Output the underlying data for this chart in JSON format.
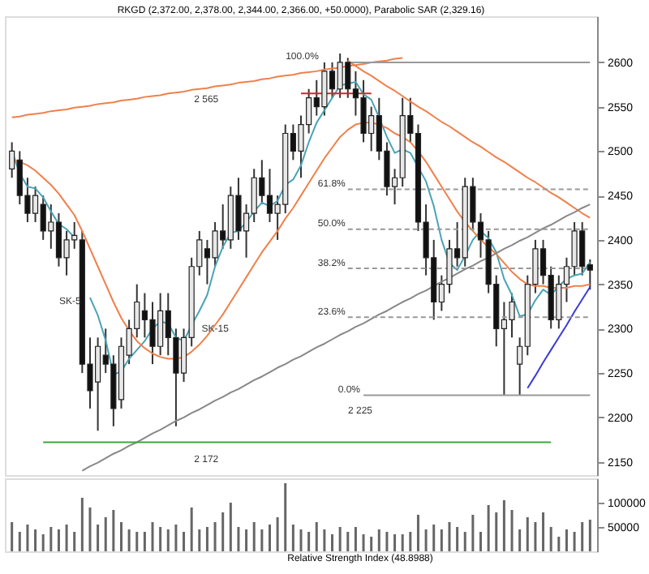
{
  "chart_data": [
    {
      "type": "candlestick",
      "title": "RKGD (2,372.00, 2,378.00, 2,344.00, 2,366.00, +50.0000), Parabolic SAR (2,329.16)",
      "categories": [
        null,
        null,
        null,
        null,
        null,
        null,
        null,
        null,
        null,
        null,
        null,
        null,
        null,
        null,
        null,
        null,
        null,
        null,
        null,
        null,
        null,
        null,
        null,
        null,
        null,
        null,
        null,
        null,
        null,
        null,
        null,
        null,
        null,
        null,
        null,
        null,
        null,
        null,
        null,
        null,
        null,
        null,
        null,
        null,
        null,
        null,
        null,
        null,
        null,
        null,
        null,
        null,
        null,
        null,
        null,
        null,
        null,
        null,
        null,
        null,
        null,
        null,
        null,
        null,
        null,
        null,
        null,
        null,
        null,
        null,
        null,
        null,
        null,
        null,
        null
      ],
      "ohlc": [
        [
          2480,
          2510,
          2470,
          2500
        ],
        [
          2490,
          2500,
          2440,
          2450
        ],
        [
          2450,
          2470,
          2420,
          2430
        ],
        [
          2430,
          2460,
          2420,
          2450
        ],
        [
          2440,
          2450,
          2400,
          2410
        ],
        [
          2410,
          2440,
          2390,
          2420
        ],
        [
          2420,
          2430,
          2370,
          2380
        ],
        [
          2380,
          2410,
          2360,
          2400
        ],
        [
          2400,
          2420,
          2390,
          2405
        ],
        [
          2400,
          2410,
          2250,
          2260
        ],
        [
          2260,
          2290,
          2210,
          2230
        ],
        [
          2240,
          2290,
          2185,
          2280
        ],
        [
          2270,
          2300,
          2250,
          2260
        ],
        [
          2260,
          2270,
          2190,
          2210
        ],
        [
          2220,
          2290,
          2210,
          2280
        ],
        [
          2270,
          2310,
          2260,
          2300
        ],
        [
          2300,
          2350,
          2290,
          2330
        ],
        [
          2320,
          2340,
          2290,
          2310
        ],
        [
          2310,
          2330,
          2260,
          2280
        ],
        [
          2280,
          2340,
          2270,
          2320
        ],
        [
          2320,
          2340,
          2270,
          2290
        ],
        [
          2290,
          2300,
          2190,
          2250
        ],
        [
          2250,
          2300,
          2240,
          2290
        ],
        [
          2290,
          2380,
          2280,
          2370
        ],
        [
          2370,
          2410,
          2360,
          2400
        ],
        [
          2390,
          2400,
          2350,
          2380
        ],
        [
          2380,
          2420,
          2370,
          2410
        ],
        [
          2410,
          2440,
          2390,
          2400
        ],
        [
          2400,
          2460,
          2390,
          2450
        ],
        [
          2450,
          2470,
          2400,
          2410
        ],
        [
          2410,
          2440,
          2380,
          2430
        ],
        [
          2430,
          2480,
          2420,
          2470
        ],
        [
          2470,
          2490,
          2440,
          2450
        ],
        [
          2450,
          2480,
          2420,
          2430
        ],
        [
          2430,
          2450,
          2400,
          2440
        ],
        [
          2440,
          2530,
          2430,
          2520
        ],
        [
          2520,
          2530,
          2490,
          2500
        ],
        [
          2500,
          2540,
          2470,
          2530
        ],
        [
          2530,
          2570,
          2520,
          2560
        ],
        [
          2560,
          2580,
          2540,
          2550
        ],
        [
          2550,
          2600,
          2540,
          2590
        ],
        [
          2590,
          2600,
          2560,
          2570
        ],
        [
          2570,
          2610,
          2560,
          2600
        ],
        [
          2600,
          2605,
          2560,
          2570
        ],
        [
          2570,
          2590,
          2540,
          2560
        ],
        [
          2560,
          2580,
          2510,
          2520
        ],
        [
          2520,
          2550,
          2500,
          2540
        ],
        [
          2540,
          2560,
          2490,
          2500
        ],
        [
          2500,
          2510,
          2450,
          2460
        ],
        [
          2460,
          2480,
          2440,
          2470
        ],
        [
          2470,
          2560,
          2460,
          2540
        ],
        [
          2540,
          2560,
          2510,
          2520
        ],
        [
          2520,
          2530,
          2410,
          2420
        ],
        [
          2420,
          2440,
          2360,
          2380
        ],
        [
          2380,
          2400,
          2310,
          2330
        ],
        [
          2330,
          2360,
          2320,
          2350
        ],
        [
          2350,
          2400,
          2340,
          2390
        ],
        [
          2390,
          2420,
          2370,
          2380
        ],
        [
          2380,
          2470,
          2370,
          2460
        ],
        [
          2460,
          2470,
          2410,
          2420
        ],
        [
          2420,
          2430,
          2380,
          2400
        ],
        [
          2400,
          2410,
          2340,
          2350
        ],
        [
          2350,
          2360,
          2280,
          2300
        ],
        [
          2300,
          2330,
          2225,
          2310
        ],
        [
          2310,
          2340,
          2290,
          2330
        ],
        [
          2260,
          2290,
          2225,
          2280
        ],
        [
          2280,
          2360,
          2270,
          2350
        ],
        [
          2350,
          2400,
          2340,
          2390
        ],
        [
          2390,
          2400,
          2350,
          2360
        ],
        [
          2360,
          2370,
          2300,
          2310
        ],
        [
          2310,
          2360,
          2300,
          2350
        ],
        [
          2350,
          2380,
          2330,
          2370
        ],
        [
          2370,
          2420,
          2360,
          2410
        ],
        [
          2410,
          2420,
          2360,
          2370
        ],
        [
          2372,
          2378,
          2344,
          2366
        ]
      ],
      "series": [
        {
          "type": "line",
          "color": "#4aa3b5",
          "values": [
            2500,
            2475,
            2460,
            2458,
            2448,
            2432,
            2418,
            2412,
            2403,
            null,
            2335,
            2315,
            2287,
            2248,
            2252,
            2266,
            2276,
            2286,
            2300,
            2308,
            2306,
            2290,
            2286,
            2304,
            2320,
            2338,
            2370,
            2392,
            2408,
            2410,
            2420,
            2432,
            2442,
            2438,
            2444,
            2462,
            2468,
            2484,
            2510,
            2532,
            2546,
            2560,
            2574,
            2576,
            2578,
            2564,
            2558,
            2538,
            2516,
            2498,
            2502,
            2498,
            2482,
            2466,
            2438,
            2400,
            2374,
            2366,
            2382,
            2400,
            2410,
            2402,
            2386,
            2356,
            2338,
            2314,
            2316,
            2332,
            2344,
            2338,
            2348,
            2356,
            2360,
            2362,
            2375
          ]
        },
        {
          "type": "line",
          "color": "#f0804a",
          "values": [
            2490,
            2488,
            2484,
            2478,
            2470,
            2462,
            2452,
            2440,
            2428,
            2410,
            2390,
            2370,
            2350,
            2330,
            2312,
            2298,
            2286,
            2278,
            2272,
            2268,
            2266,
            2266,
            2268,
            2274,
            2282,
            2292,
            2304,
            2316,
            2330,
            2344,
            2358,
            2372,
            2386,
            2398,
            2410,
            2424,
            2436,
            2450,
            2464,
            2478,
            2492,
            2504,
            2516,
            2524,
            2530,
            2532,
            2532,
            2530,
            2526,
            2520,
            2516,
            2510,
            2500,
            2488,
            2474,
            2460,
            2446,
            2432,
            2420,
            2410,
            2400,
            2392,
            2384,
            2374,
            2364,
            2356,
            2350,
            2348,
            2348,
            2346,
            2346,
            2346,
            2348,
            2348,
            2350
          ]
        },
        {
          "type": "line",
          "color": "#f0804a",
          "values": [
            2538,
            2539,
            2541,
            2542,
            2543,
            2545,
            2546,
            2547,
            2549,
            2550,
            2551,
            2553,
            2554,
            2555,
            2557,
            2558,
            2559,
            2561,
            2562,
            2563,
            2565,
            2566,
            2567,
            2569,
            2570,
            2571,
            2573,
            2574,
            2575,
            2577,
            2578,
            2579,
            2581,
            2582,
            2584,
            2585,
            2586,
            2588,
            2589,
            2590,
            2592,
            2593,
            2594,
            2596,
            2597,
            2598,
            2600,
            2601,
            2602,
            2604,
            2605,
            null,
            null,
            null,
            null,
            null,
            null,
            null,
            null,
            null,
            null,
            null,
            null,
            null,
            null,
            null,
            null,
            null,
            null,
            null,
            null,
            null,
            null,
            null,
            null
          ]
        },
        {
          "type": "line",
          "color": "#f0804a",
          "values": [
            null,
            null,
            null,
            null,
            null,
            null,
            null,
            null,
            null,
            null,
            null,
            null,
            null,
            null,
            null,
            null,
            null,
            null,
            null,
            null,
            null,
            null,
            null,
            null,
            null,
            null,
            null,
            null,
            null,
            null,
            null,
            null,
            null,
            null,
            null,
            null,
            null,
            null,
            null,
            null,
            null,
            null,
            null,
            2602,
            2596,
            2590,
            2585,
            2579,
            2573,
            2568,
            2562,
            2556,
            2550,
            2545,
            2539,
            2533,
            2528,
            2522,
            2516,
            2510,
            2505,
            2499,
            2493,
            2488,
            2482,
            2476,
            2470,
            2465,
            2459,
            2453,
            2448,
            2442,
            2436,
            2430,
            2425
          ]
        },
        {
          "type": "line",
          "color": "#888888",
          "values": [
            null,
            null,
            null,
            null,
            null,
            null,
            null,
            null,
            null,
            2140,
            2145,
            2149,
            2154,
            2159,
            2163,
            2168,
            2172,
            2177,
            2182,
            2186,
            2191,
            2196,
            2200,
            2205,
            2209,
            2214,
            2219,
            2223,
            2228,
            2232,
            2237,
            2242,
            2246,
            2251,
            2256,
            2260,
            2265,
            2269,
            2274,
            2279,
            2283,
            2288,
            2293,
            2297,
            2302,
            2306,
            2311,
            2316,
            2320,
            2325,
            2330,
            2334,
            2339,
            2343,
            2348,
            2353,
            2357,
            2362,
            2367,
            2371,
            2376,
            2380,
            2385,
            2390,
            2394,
            2399,
            2403,
            2408,
            2413,
            2417,
            2422,
            2427,
            2431,
            2436,
            2440
          ]
        },
        {
          "type": "line",
          "color": "#3b3bd6",
          "values": [
            null,
            null,
            null,
            null,
            null,
            null,
            null,
            null,
            null,
            null,
            null,
            null,
            null,
            null,
            null,
            null,
            null,
            null,
            null,
            null,
            null,
            null,
            null,
            null,
            null,
            null,
            null,
            null,
            null,
            null,
            null,
            null,
            null,
            null,
            null,
            null,
            null,
            null,
            null,
            null,
            null,
            null,
            null,
            null,
            null,
            null,
            null,
            null,
            null,
            null,
            null,
            null,
            null,
            null,
            null,
            null,
            null,
            null,
            null,
            null,
            null,
            null,
            null,
            null,
            null,
            null,
            2233,
            2247,
            2262,
            2276,
            2290,
            2304,
            2319,
            2333,
            2347
          ]
        },
        {
          "type": "line",
          "color": "#e0202a",
          "values": [
            null,
            null,
            null,
            null,
            null,
            null,
            null,
            null,
            null,
            null,
            null,
            null,
            null,
            null,
            null,
            null,
            null,
            null,
            null,
            null,
            null,
            null,
            null,
            null,
            null,
            null,
            null,
            null,
            null,
            null,
            null,
            null,
            null,
            null,
            null,
            null,
            null,
            2565,
            2565,
            2565,
            2565,
            2565,
            2565,
            2565,
            2565,
            2565,
            2565,
            null,
            null,
            null,
            null,
            null,
            null,
            null,
            null,
            null,
            null,
            null,
            null,
            null,
            null,
            null,
            null,
            null,
            null,
            null,
            null,
            null,
            null,
            null,
            null,
            null,
            null,
            null,
            null
          ]
        },
        {
          "type": "line",
          "color": "#3aa83a",
          "values": [
            null,
            null,
            null,
            null,
            2172,
            2172,
            2172,
            2172,
            2172,
            2172,
            2172,
            2172,
            2172,
            2172,
            2172,
            2172,
            2172,
            2172,
            2172,
            2172,
            2172,
            2172,
            2172,
            2172,
            2172,
            2172,
            2172,
            2172,
            2172,
            2172,
            2172,
            2172,
            2172,
            2172,
            2172,
            2172,
            2172,
            2172,
            2172,
            2172,
            2172,
            2172,
            2172,
            2172,
            2172,
            2172,
            2172,
            2172,
            2172,
            2172,
            2172,
            2172,
            2172,
            2172,
            2172,
            2172,
            2172,
            2172,
            2172,
            2172,
            2172,
            2172,
            2172,
            2172,
            2172,
            2172,
            2172,
            2172,
            2172,
            2172,
            null,
            null,
            null,
            null,
            null
          ]
        },
        {
          "type": "line",
          "color": "#999999",
          "values": [
            null,
            null,
            null,
            null,
            null,
            null,
            null,
            null,
            null,
            null,
            null,
            null,
            null,
            null,
            null,
            null,
            null,
            null,
            null,
            null,
            null,
            null,
            null,
            null,
            null,
            null,
            null,
            null,
            null,
            null,
            null,
            null,
            null,
            null,
            null,
            null,
            null,
            null,
            null,
            null,
            null,
            null,
            null,
            2600,
            2600,
            2600,
            2600,
            2600,
            2600,
            2600,
            2600,
            2600,
            2600,
            2600,
            2600,
            2600,
            2600,
            2600,
            2600,
            2600,
            2600,
            2600,
            2600,
            2600,
            2600,
            2600,
            2600,
            2600,
            2600,
            2600,
            2600,
            2600,
            2600,
            2600,
            2600
          ]
        },
        {
          "type": "line",
          "color": "#999999",
          "line_style": "dashed",
          "values": [
            null,
            null,
            null,
            null,
            null,
            null,
            null,
            null,
            null,
            null,
            null,
            null,
            null,
            null,
            null,
            null,
            null,
            null,
            null,
            null,
            null,
            null,
            null,
            null,
            null,
            null,
            null,
            null,
            null,
            null,
            null,
            null,
            null,
            null,
            null,
            null,
            null,
            null,
            null,
            null,
            null,
            null,
            null,
            2457,
            2457,
            2457,
            2457,
            2457,
            2457,
            2457,
            2457,
            2457,
            2457,
            2457,
            2457,
            2457,
            2457,
            2457,
            2457,
            2457,
            2457,
            2457,
            2457,
            2457,
            2457,
            2457,
            2457,
            2457,
            2457,
            2457,
            2457,
            2457,
            2457,
            2457,
            2457
          ]
        },
        {
          "type": "line",
          "color": "#999999",
          "line_style": "dashed",
          "values": [
            null,
            null,
            null,
            null,
            null,
            null,
            null,
            null,
            null,
            null,
            null,
            null,
            null,
            null,
            null,
            null,
            null,
            null,
            null,
            null,
            null,
            null,
            null,
            null,
            null,
            null,
            null,
            null,
            null,
            null,
            null,
            null,
            null,
            null,
            null,
            null,
            null,
            null,
            null,
            null,
            null,
            null,
            null,
            2412,
            2412,
            2412,
            2412,
            2412,
            2412,
            2412,
            2412,
            2412,
            2412,
            2412,
            2412,
            2412,
            2412,
            2412,
            2412,
            2412,
            2412,
            2412,
            2412,
            2412,
            2412,
            2412,
            2412,
            2412,
            2412,
            2412,
            2412,
            2412,
            2412,
            2412,
            2412
          ]
        },
        {
          "type": "line",
          "color": "#999999",
          "line_style": "dashed",
          "values": [
            null,
            null,
            null,
            null,
            null,
            null,
            null,
            null,
            null,
            null,
            null,
            null,
            null,
            null,
            null,
            null,
            null,
            null,
            null,
            null,
            null,
            null,
            null,
            null,
            null,
            null,
            null,
            null,
            null,
            null,
            null,
            null,
            null,
            null,
            null,
            null,
            null,
            null,
            null,
            null,
            null,
            null,
            null,
            2368,
            2368,
            2368,
            2368,
            2368,
            2368,
            2368,
            2368,
            2368,
            2368,
            2368,
            2368,
            2368,
            2368,
            2368,
            2368,
            2368,
            2368,
            2368,
            2368,
            2368,
            2368,
            2368,
            2368,
            2368,
            2368,
            2368,
            2368,
            2368,
            2368,
            2368,
            2368
          ]
        },
        {
          "type": "line",
          "color": "#999999",
          "line_style": "dashed",
          "values": [
            null,
            null,
            null,
            null,
            null,
            null,
            null,
            null,
            null,
            null,
            null,
            null,
            null,
            null,
            null,
            null,
            null,
            null,
            null,
            null,
            null,
            null,
            null,
            null,
            null,
            null,
            null,
            null,
            null,
            null,
            null,
            null,
            null,
            null,
            null,
            null,
            null,
            null,
            null,
            null,
            null,
            null,
            null,
            2313,
            2313,
            2313,
            2313,
            2313,
            2313,
            2313,
            2313,
            2313,
            2313,
            2313,
            2313,
            2313,
            2313,
            2313,
            2313,
            2313,
            2313,
            2313,
            2313,
            2313,
            2313,
            2313,
            2313,
            2313,
            2313,
            2313,
            2313,
            2313,
            2313,
            2313,
            2313
          ]
        },
        {
          "type": "line",
          "color": "#999999",
          "values": [
            null,
            null,
            null,
            null,
            null,
            null,
            null,
            null,
            null,
            null,
            null,
            null,
            null,
            null,
            null,
            null,
            null,
            null,
            null,
            null,
            null,
            null,
            null,
            null,
            null,
            null,
            null,
            null,
            null,
            null,
            null,
            null,
            null,
            null,
            null,
            null,
            null,
            null,
            null,
            null,
            null,
            null,
            null,
            null,
            null,
            2225,
            2225,
            2225,
            2225,
            2225,
            2225,
            2225,
            2225,
            2225,
            2225,
            2225,
            2225,
            2225,
            2225,
            2225,
            2225,
            2225,
            2225,
            2225,
            2225,
            2225,
            2225,
            2225,
            2225,
            2225,
            2225,
            2225,
            2225,
            2225,
            2225
          ]
        }
      ],
      "annotations": [
        "SK-5",
        "SK-15",
        "2 565",
        "2 172",
        "2 225",
        "100.0%",
        "61.8%",
        "50.0%",
        "38.2%",
        "23.6%",
        "0.0%"
      ],
      "ylim": [
        2135,
        2652
      ],
      "yticks": [
        2150,
        2200,
        2250,
        2300,
        2350,
        2400,
        2450,
        2500,
        2550,
        2600
      ],
      "tick_labels": "y",
      "grid": false,
      "legend": false
    },
    {
      "type": "bar",
      "color": "#666666",
      "categories": [
        null,
        null,
        null,
        null,
        null,
        null,
        null,
        null,
        null,
        null,
        null,
        null,
        null,
        null,
        null,
        null,
        null,
        null,
        null,
        null,
        null,
        null,
        null,
        null,
        null,
        null,
        null,
        null,
        null,
        null,
        null,
        null,
        null,
        null,
        null,
        null,
        null,
        null,
        null,
        null,
        null,
        null,
        null,
        null,
        null,
        null,
        null,
        null,
        null,
        null,
        null,
        null,
        null,
        null,
        null,
        null,
        null,
        null,
        null,
        null,
        null,
        null,
        null,
        null,
        null,
        null,
        null,
        null,
        null,
        null,
        null,
        null,
        null,
        null,
        null
      ],
      "values": [
        60000,
        40000,
        55000,
        45000,
        35000,
        50000,
        45000,
        55000,
        40000,
        110000,
        90000,
        55000,
        70000,
        85000,
        60000,
        45000,
        40000,
        40000,
        60000,
        50000,
        45000,
        55000,
        40000,
        90000,
        45000,
        50000,
        60000,
        80000,
        100000,
        50000,
        45000,
        60000,
        45000,
        55000,
        70000,
        140000,
        55000,
        45000,
        40000,
        60000,
        45000,
        35000,
        50000,
        40000,
        50000,
        35000,
        30000,
        45000,
        40000,
        35000,
        35000,
        40000,
        75000,
        45000,
        55000,
        45000,
        60000,
        50000,
        40000,
        75000,
        40000,
        95000,
        80000,
        105000,
        85000,
        45000,
        70000,
        60000,
        80000,
        50000,
        30000,
        45000,
        40000,
        60000,
        65000
      ],
      "annotations": [
        "Relative Strength Index (48.8988)"
      ],
      "ylim": [
        0,
        150000
      ],
      "yticks": [
        50000,
        100000
      ],
      "tick_labels": "y",
      "grid": false
    }
  ]
}
